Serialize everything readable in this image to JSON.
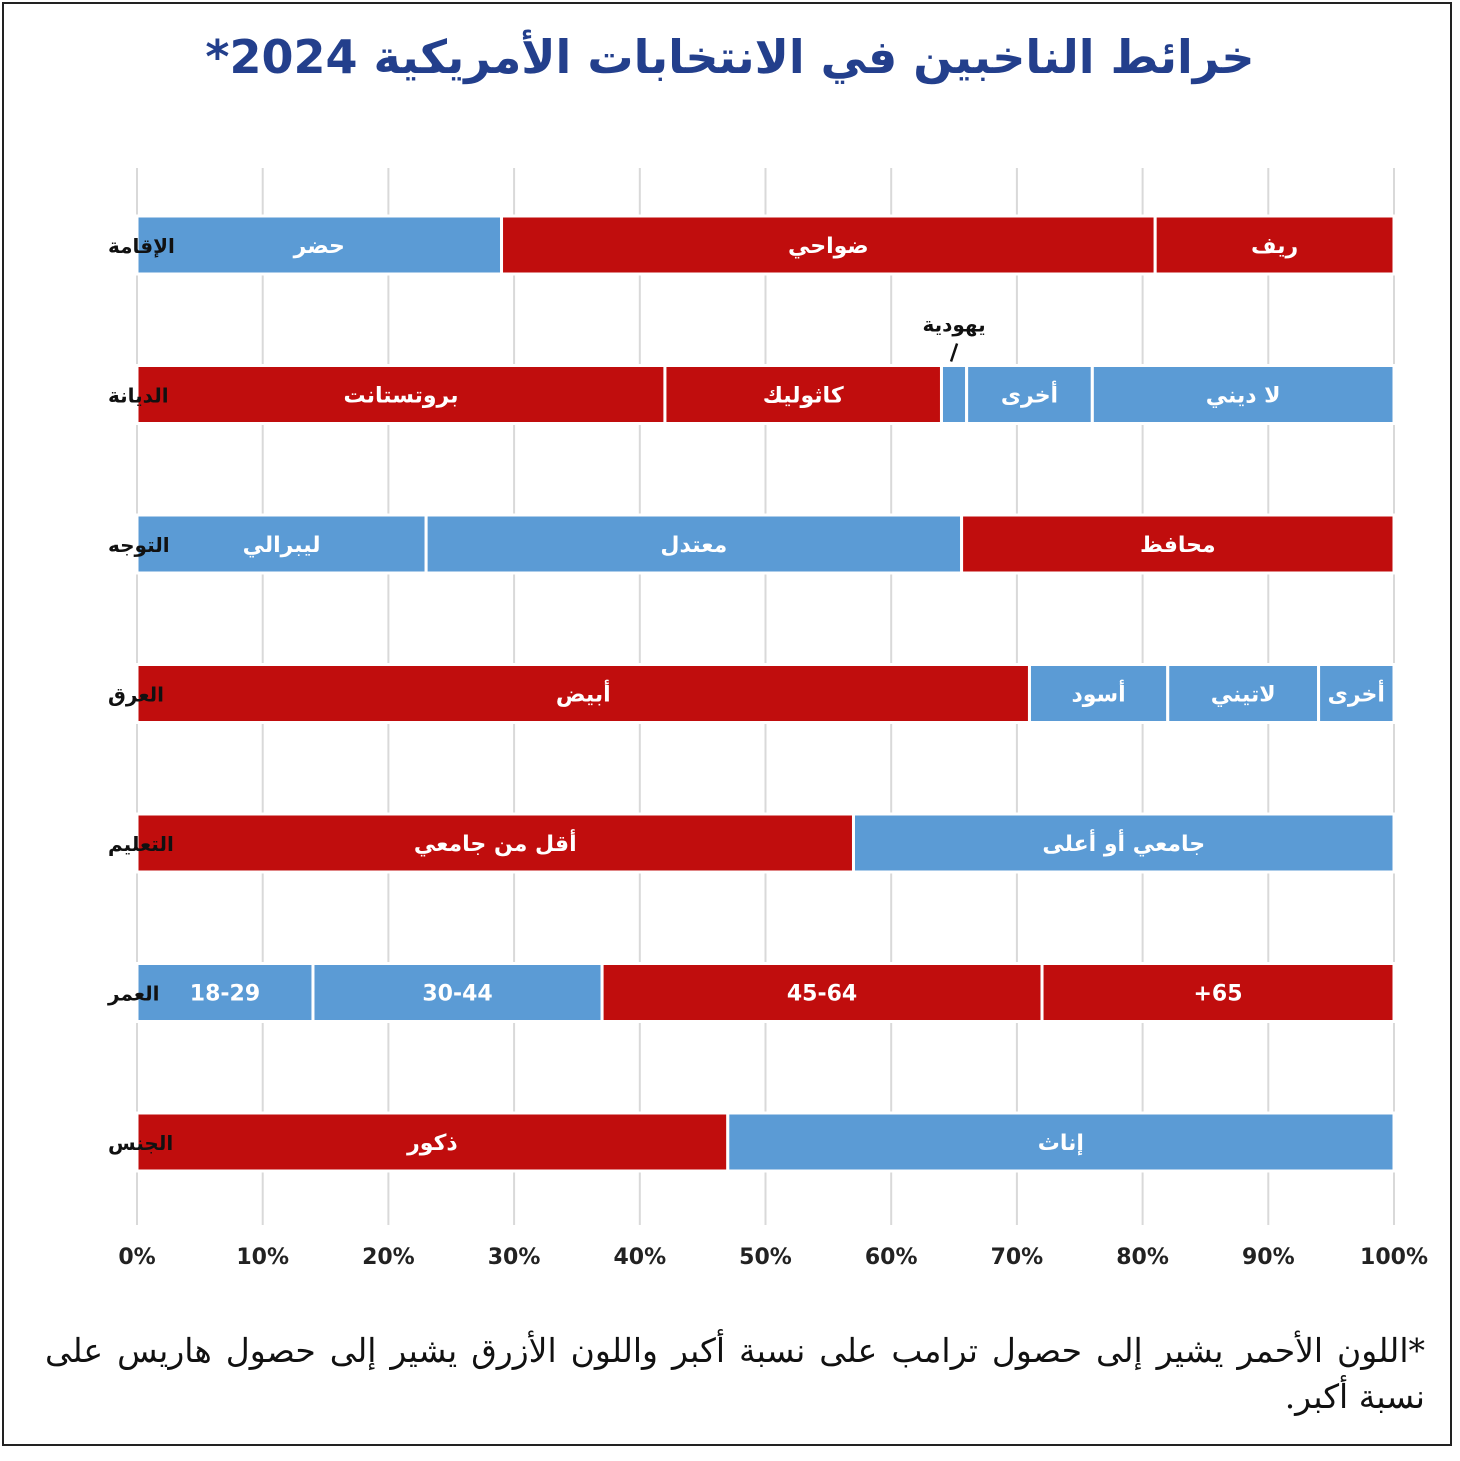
{
  "title": "خرائط الناخبين في الانتخابات الأمريكية 2024*",
  "footnote": "*اللون الأحمر يشير إلى حصول ترامب على نسبة أكبر واللون الأزرق يشير إلى حصول هاريس على نسبة أكبر.",
  "colors": {
    "red": "#c00d0d",
    "blue": "#5b9bd5",
    "grid": "#d9d9d9"
  },
  "chart_data": {
    "type": "bar",
    "orientation": "horizontal-stacked-100",
    "xlim": [
      0,
      100
    ],
    "x_ticks": [
      "0%",
      "10%",
      "20%",
      "30%",
      "40%",
      "50%",
      "60%",
      "70%",
      "80%",
      "90%",
      "100%"
    ],
    "grid": true,
    "rows": [
      {
        "label": "الإقامة",
        "segments": [
          {
            "name": "حضر",
            "start": 0,
            "end": 29,
            "color": "blue"
          },
          {
            "name": "ضواحي",
            "start": 29,
            "end": 81,
            "color": "red"
          },
          {
            "name": "ريف",
            "start": 81,
            "end": 100,
            "color": "red"
          }
        ]
      },
      {
        "label": "الديانة",
        "segments": [
          {
            "name": "بروتستانت",
            "start": 0,
            "end": 42,
            "color": "red"
          },
          {
            "name": "كاثوليك",
            "start": 42,
            "end": 64,
            "color": "red"
          },
          {
            "name": "يهودية",
            "start": 64,
            "end": 66,
            "color": "blue",
            "callout": true
          },
          {
            "name": "أخرى",
            "start": 66,
            "end": 76,
            "color": "blue"
          },
          {
            "name": "لا ديني",
            "start": 76,
            "end": 100,
            "color": "blue"
          }
        ]
      },
      {
        "label": "التوجه",
        "segments": [
          {
            "name": "ليبرالي",
            "start": 0,
            "end": 23,
            "color": "blue"
          },
          {
            "name": "معتدل",
            "start": 23,
            "end": 65.6,
            "color": "blue"
          },
          {
            "name": "محافظ",
            "start": 65.6,
            "end": 100,
            "color": "red"
          }
        ]
      },
      {
        "label": "العرق",
        "segments": [
          {
            "name": "أبيض",
            "start": 0,
            "end": 71,
            "color": "red"
          },
          {
            "name": "أسود",
            "start": 71,
            "end": 82,
            "color": "blue"
          },
          {
            "name": "لاتيني",
            "start": 82,
            "end": 94,
            "color": "blue"
          },
          {
            "name": "أخرى",
            "start": 94,
            "end": 100,
            "color": "blue"
          }
        ]
      },
      {
        "label": "التعليم",
        "segments": [
          {
            "name": "أقل من جامعي",
            "start": 0,
            "end": 57,
            "color": "red"
          },
          {
            "name": "جامعي أو أعلى",
            "start": 57,
            "end": 100,
            "color": "blue"
          }
        ]
      },
      {
        "label": "العمر",
        "segments": [
          {
            "name": "18-29",
            "start": 0,
            "end": 14,
            "color": "blue"
          },
          {
            "name": "30-44",
            "start": 14,
            "end": 37,
            "color": "blue"
          },
          {
            "name": "45-64",
            "start": 37,
            "end": 72,
            "color": "red"
          },
          {
            "name": "65+",
            "start": 72,
            "end": 100,
            "color": "red"
          }
        ]
      },
      {
        "label": "الجنس",
        "segments": [
          {
            "name": "ذكور",
            "start": 0,
            "end": 47,
            "color": "red"
          },
          {
            "name": "إناث",
            "start": 47,
            "end": 100,
            "color": "blue"
          }
        ]
      }
    ]
  }
}
